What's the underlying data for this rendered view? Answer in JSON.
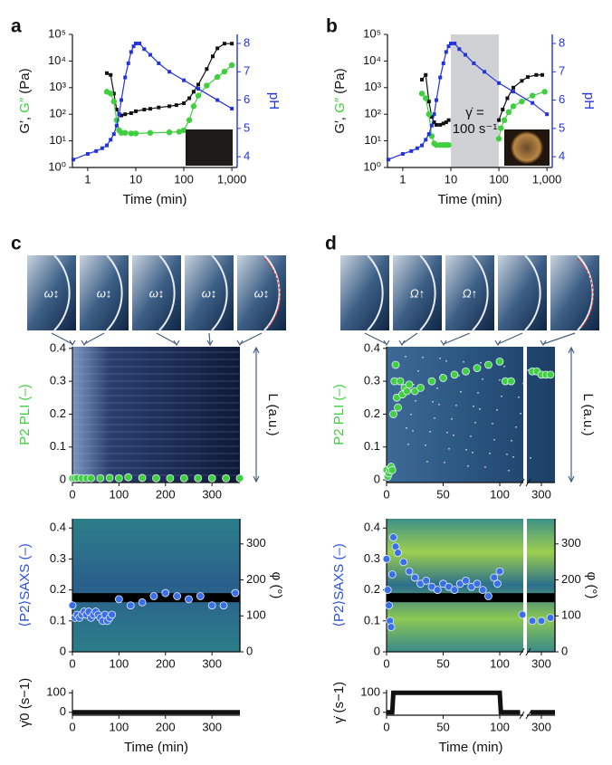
{
  "chart_data": [
    {
      "panel": "a",
      "type": "line",
      "xlabel": "Time (min)",
      "ylabel": [
        {
          "text": "G′, ",
          "color": "#111111"
        },
        {
          "text": "G″",
          "color": "#3fcf3f"
        },
        {
          "text": " (Pa)",
          "color": "#111111"
        }
      ],
      "y2label": "pH",
      "xscale": "log",
      "yscale": "log",
      "xlim": [
        0.48,
        1290
      ],
      "xticks": [
        1,
        10,
        100,
        {
          "value": 1000,
          "label": "1,000"
        }
      ],
      "ylim": [
        1,
        100000
      ],
      "yticks": [
        {
          "value": 1,
          "label": "10⁰"
        },
        {
          "value": 10,
          "label": "10¹"
        },
        {
          "value": 100,
          "label": "10²"
        },
        {
          "value": 1000,
          "label": "10³"
        },
        {
          "value": 10000,
          "label": "10⁴"
        },
        {
          "value": 100000,
          "label": "10⁵"
        }
      ],
      "y2lim": [
        3.62,
        8.32
      ],
      "y2ticks": [
        4,
        5,
        6,
        7,
        8
      ],
      "series": [
        {
          "color": "#111111",
          "marker": "square",
          "x": [
            2.5,
            3,
            3.5,
            4,
            4.5,
            5,
            6,
            8,
            10,
            15,
            20,
            30,
            50,
            70,
            100,
            130,
            160,
            200,
            300,
            400,
            500,
            700,
            1000
          ],
          "values": [
            3500,
            3000,
            600,
            150,
            100,
            90,
            100,
            110,
            130,
            150,
            160,
            180,
            200,
            220,
            260,
            400,
            700,
            1300,
            5000,
            15000,
            30000,
            45000,
            45000
          ]
        },
        {
          "color": "#3fcf3f",
          "marker": "circle",
          "x": [
            2.5,
            3,
            3.5,
            4,
            4.5,
            5,
            6,
            8,
            10,
            20,
            50,
            80,
            100,
            130,
            160,
            200,
            300,
            500,
            700,
            1000
          ],
          "values": [
            700,
            600,
            300,
            60,
            25,
            20,
            20,
            19,
            19,
            20,
            21,
            22,
            25,
            60,
            200,
            500,
            1200,
            2500,
            4000,
            7000
          ]
        },
        {
          "color": "#2233dd",
          "marker": "square",
          "axis": "y2",
          "x": [
            0.5,
            1,
            1.5,
            2,
            2.5,
            3,
            3.5,
            4,
            4.5,
            5,
            6,
            7,
            8,
            9,
            10,
            12,
            15,
            20,
            30,
            50,
            100,
            200,
            500,
            1000
          ],
          "values": [
            3.9,
            4.1,
            4.2,
            4.3,
            4.4,
            4.6,
            4.8,
            5.1,
            5.5,
            6.0,
            6.8,
            7.3,
            7.7,
            7.9,
            8.0,
            8.0,
            7.8,
            7.6,
            7.3,
            7.0,
            6.7,
            6.4,
            6.0,
            5.7
          ]
        }
      ]
    },
    {
      "panel": "b",
      "type": "line",
      "xlabel": "Time (min)",
      "ylabel": [
        {
          "text": "G′, ",
          "color": "#111111"
        },
        {
          "text": "G″",
          "color": "#3fcf3f"
        },
        {
          "text": " (Pa)",
          "color": "#111111"
        }
      ],
      "y2label": "pH",
      "xscale": "log",
      "yscale": "log",
      "shade": [
        10,
        100
      ],
      "annotation": [
        "γ̇ =",
        "100 s⁻¹"
      ],
      "xlim": [
        0.48,
        1290
      ],
      "xticks": [
        1,
        10,
        100,
        {
          "value": 1000,
          "label": "1,000"
        }
      ],
      "ylim": [
        1,
        100000
      ],
      "yticks": [
        {
          "value": 1,
          "label": "10⁰"
        },
        {
          "value": 10,
          "label": "10¹"
        },
        {
          "value": 100,
          "label": "10²"
        },
        {
          "value": 1000,
          "label": "10³"
        },
        {
          "value": 10000,
          "label": "10⁴"
        },
        {
          "value": 100000,
          "label": "10⁵"
        }
      ],
      "y2lim": [
        3.62,
        8.32
      ],
      "y2ticks": [
        4,
        5,
        6,
        7,
        8
      ],
      "series": [
        {
          "color": "#111111",
          "marker": "square",
          "x": [
            2.5,
            3,
            3.5,
            4,
            4.5,
            5,
            6,
            7,
            8,
            9,
            null,
            100,
            120,
            150,
            200,
            300,
            400,
            600,
            800
          ],
          "values": [
            2000,
            3000,
            300,
            80,
            50,
            40,
            40,
            45,
            50,
            60,
            null,
            60,
            150,
            400,
            1000,
            1800,
            2500,
            3000,
            3000
          ]
        },
        {
          "color": "#3fcf3f",
          "marker": "circle",
          "x": [
            2.5,
            3,
            3.5,
            4,
            4.5,
            5,
            6,
            7,
            8,
            9,
            null,
            100,
            110,
            130,
            160,
            200,
            300,
            500,
            900
          ],
          "values": [
            600,
            400,
            100,
            15,
            8,
            7,
            7,
            7,
            7,
            7,
            null,
            12,
            30,
            60,
            120,
            200,
            300,
            500,
            700
          ]
        },
        {
          "color": "#2233dd",
          "marker": "square",
          "axis": "y2",
          "x": [
            0.5,
            1,
            1.5,
            2,
            2.5,
            3,
            3.5,
            4,
            4.5,
            5,
            6,
            7,
            8,
            9,
            10,
            12,
            15,
            20,
            30,
            50,
            100,
            200,
            500,
            1000
          ],
          "values": [
            3.9,
            4.1,
            4.2,
            4.3,
            4.4,
            4.6,
            4.8,
            5.1,
            5.5,
            6.0,
            6.8,
            7.3,
            7.7,
            7.9,
            8.0,
            8.0,
            7.8,
            7.6,
            7.3,
            7.0,
            6.6,
            6.3,
            5.9,
            5.5
          ]
        }
      ]
    },
    {
      "panel": "c",
      "type": "scatter",
      "photo_labels": [
        "ω↕",
        "ω↕",
        "ω↕",
        "ω↕",
        "ω↕"
      ],
      "ylabel": "P2 PLI (–)",
      "ylabel_color": "#3fcf3f",
      "right_label": "L (a.u.)",
      "xlim": [
        0,
        360
      ],
      "xticks": [
        0,
        100,
        200,
        300
      ],
      "ylim": [
        -0.008,
        0.405
      ],
      "yticks": [
        0,
        0.1,
        0.2,
        0.3,
        0.4
      ],
      "series": [
        {
          "color": "#3fcf3f",
          "x": [
            0,
            5,
            10,
            20,
            30,
            40,
            60,
            80,
            100,
            120,
            150,
            180,
            210,
            240,
            270,
            300,
            330,
            360
          ],
          "values": [
            0.005,
            0.005,
            0.006,
            0.005,
            0.005,
            0.005,
            0.005,
            0.006,
            0.005,
            0.008,
            0.006,
            0.005,
            0.005,
            0.005,
            0.005,
            0.005,
            0.005,
            0.005
          ]
        }
      ]
    },
    {
      "type": "scatter",
      "ylabel": "⟨P2⟩SAXS (–)",
      "ylabel_color": "#2a4fe0",
      "y2label": "φ (°)",
      "xlim": [
        0,
        360
      ],
      "xticks": [
        0,
        100,
        200,
        300
      ],
      "ylim": [
        0,
        0.43
      ],
      "yticks": [
        0,
        0.1,
        0.2,
        0.3,
        0.4
      ],
      "y2lim": [
        0,
        370
      ],
      "y2ticks": [
        0,
        100,
        200,
        300
      ],
      "series": [
        {
          "color": "#3a6fe8",
          "x": [
            0,
            5,
            10,
            15,
            20,
            25,
            30,
            35,
            40,
            45,
            50,
            55,
            60,
            65,
            70,
            75,
            80,
            85,
            100,
            125,
            150,
            175,
            200,
            225,
            250,
            275,
            300,
            325,
            350
          ],
          "values": [
            0.15,
            0.11,
            0.12,
            0.11,
            0.12,
            0.13,
            0.12,
            0.13,
            0.11,
            0.12,
            0.13,
            0.12,
            0.11,
            0.1,
            0.12,
            0.1,
            0.11,
            0.12,
            0.17,
            0.15,
            0.16,
            0.18,
            0.19,
            0.18,
            0.17,
            0.18,
            0.15,
            0.15,
            0.19
          ]
        }
      ]
    },
    {
      "type": "line",
      "xlabel": "Time (min)",
      "ylabel": "γ̇0 (s−1)",
      "xlim": [
        0,
        360
      ],
      "xticks": [
        0,
        100,
        200,
        300
      ],
      "ylim": [
        -15,
        115
      ],
      "yticks": [
        0,
        100
      ],
      "series": [
        {
          "color": "#111111",
          "marker": "none",
          "x": [
            0,
            360
          ],
          "values": [
            0,
            0
          ]
        }
      ]
    },
    {
      "panel": "d",
      "type": "scatter",
      "photo_labels": [
        "Ω↑",
        "Ω↑"
      ],
      "ylabel": "P2 PLI (–)",
      "ylabel_color": "#3fcf3f",
      "right_label": "L (a.u.)",
      "xlim": [
        0,
        315
      ],
      "xbreak": [
        120,
        285
      ],
      "xticks": [
        0,
        50,
        100,
        300
      ],
      "ylim": [
        -0.008,
        0.405
      ],
      "yticks": [
        0,
        0.1,
        0.2,
        0.3,
        0.4
      ],
      "series": [
        {
          "color": "#3fcf3f",
          "x": [
            0,
            1,
            2,
            3,
            4,
            5,
            6,
            7,
            8,
            9,
            10,
            12,
            14,
            16,
            18,
            20,
            25,
            30,
            40,
            50,
            60,
            70,
            80,
            90,
            100,
            105,
            110,
            290,
            295,
            300,
            305,
            310
          ],
          "values": [
            0.03,
            0.01,
            0.02,
            0.03,
            0.04,
            0.03,
            0.2,
            0.3,
            0.35,
            0.25,
            0.22,
            0.3,
            0.26,
            0.28,
            0.27,
            0.29,
            0.27,
            0.28,
            0.3,
            0.31,
            0.32,
            0.33,
            0.34,
            0.35,
            0.36,
            0.3,
            0.3,
            0.33,
            0.33,
            0.32,
            0.32,
            0.32
          ]
        }
      ]
    },
    {
      "type": "scatter",
      "ylabel": "⟨P2⟩SAXS (–)",
      "ylabel_color": "#2a4fe0",
      "y2label": "φ (°)",
      "xlim": [
        0,
        315
      ],
      "xbreak": [
        120,
        285
      ],
      "xticks": [
        0,
        50,
        100,
        300
      ],
      "ylim": [
        0,
        0.43
      ],
      "yticks": [
        0,
        0.1,
        0.2,
        0.3,
        0.4
      ],
      "y2lim": [
        0,
        370
      ],
      "y2ticks": [
        0,
        100,
        200,
        300
      ],
      "series": [
        {
          "color": "#3a6fe8",
          "x": [
            0,
            1,
            2,
            3,
            4,
            5,
            6,
            8,
            10,
            15,
            20,
            25,
            30,
            35,
            40,
            45,
            50,
            55,
            60,
            65,
            70,
            75,
            80,
            85,
            90,
            95,
            98,
            100,
            120,
            290,
            300,
            310
          ],
          "values": [
            0.3,
            0.2,
            0.15,
            0.1,
            0.08,
            0.25,
            0.37,
            0.34,
            0.32,
            0.29,
            0.26,
            0.24,
            0.22,
            0.23,
            0.21,
            0.2,
            0.22,
            0.21,
            0.2,
            0.22,
            0.23,
            0.21,
            0.22,
            0.2,
            0.18,
            0.24,
            0.22,
            0.26,
            0.12,
            0.1,
            0.1,
            0.11
          ]
        }
      ]
    },
    {
      "type": "line",
      "xlabel": "Time (min)",
      "ylabel": "γ̇ (s−1)",
      "xlim": [
        0,
        315
      ],
      "xbreak": [
        120,
        285
      ],
      "xticks": [
        0,
        50,
        100,
        300
      ],
      "ylim": [
        -15,
        115
      ],
      "yticks": [
        0,
        100
      ],
      "series": [
        {
          "color": "#111111",
          "marker": "none",
          "x": [
            0,
            5,
            6,
            100,
            101,
            118,
            288,
            315
          ],
          "values": [
            0,
            0,
            100,
            100,
            0,
            0,
            0,
            0
          ]
        }
      ]
    }
  ]
}
